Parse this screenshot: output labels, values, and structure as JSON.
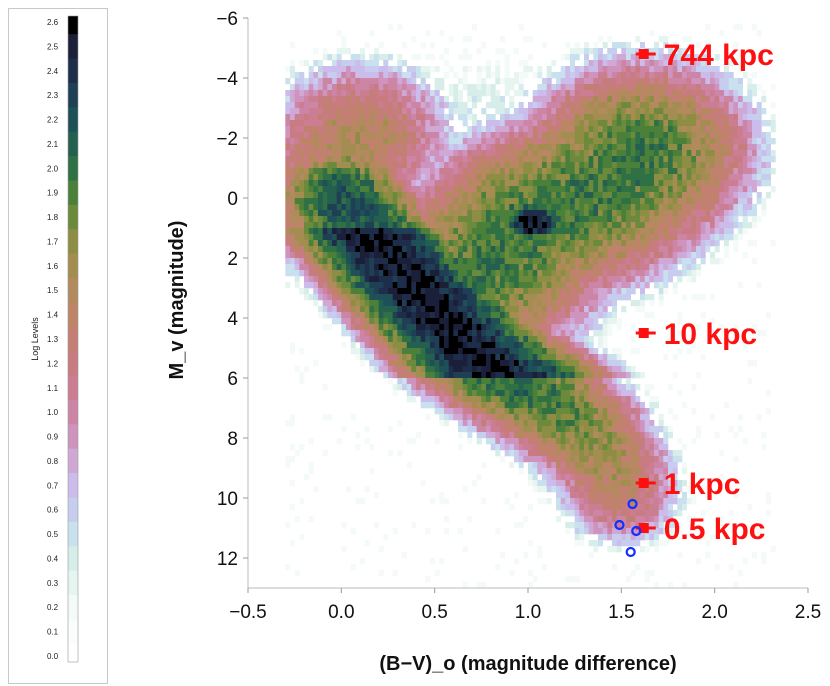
{
  "colorbar": {
    "title": "Log Levels",
    "levels": [
      "2.6",
      "2.5",
      "2.4",
      "2.3",
      "2.2",
      "2.1",
      "2.0",
      "1.9",
      "1.8",
      "1.7",
      "1.6",
      "1.5",
      "1.4",
      "1.3",
      "1.2",
      "1.1",
      "1.0",
      "0.9",
      "0.8",
      "0.7",
      "0.6",
      "0.5",
      "0.4",
      "0.3",
      "0.2",
      "0.1",
      "0.0"
    ],
    "colors": [
      "#000000",
      "#1b1f3a",
      "#1d2d4a",
      "#1f3f55",
      "#1e5157",
      "#255f50",
      "#2f7044",
      "#4a8039",
      "#6c8a3b",
      "#8d8e44",
      "#a38d50",
      "#b28a5d",
      "#bd8468",
      "#c47f74",
      "#c87c82",
      "#cb7d92",
      "#cd85a6",
      "#cf94bd",
      "#cfa8d6",
      "#cbbceb",
      "#c6cdee",
      "#c9e0ee",
      "#d6ede9",
      "#e6f5f0",
      "#f3faf8",
      "#fafdfc",
      "#ffffff"
    ]
  },
  "chart_data": {
    "type": "heatmap",
    "title": "",
    "xlabel": "(B−V)_o (magnitude difference)",
    "ylabel": "M_v (magnitude)",
    "xlim": [
      -0.5,
      2.5
    ],
    "ylim": [
      -6,
      13
    ],
    "y_inverted": true,
    "x_ticks": [
      "−0.5",
      "0.0",
      "0.5",
      "1.0",
      "1.5",
      "2.0",
      "2.5"
    ],
    "y_ticks": [
      "−6",
      "−4",
      "−2",
      "0",
      "2",
      "4",
      "6",
      "8",
      "10",
      "12"
    ],
    "grid": false,
    "distance_markers": [
      {
        "label": "744 kpc",
        "x": 1.62,
        "y": -4.8
      },
      {
        "label": "10 kpc",
        "x": 1.62,
        "y": 4.5
      },
      {
        "label": "1 kpc",
        "x": 1.62,
        "y": 9.5
      },
      {
        "label": "0.5 kpc",
        "x": 1.62,
        "y": 11.0
      }
    ],
    "open_circles": [
      {
        "x": 1.56,
        "y": 10.2
      },
      {
        "x": 1.49,
        "y": 10.9
      },
      {
        "x": 1.58,
        "y": 11.1
      },
      {
        "x": 1.55,
        "y": 11.8
      }
    ],
    "density_features": [
      {
        "name": "main sequence upper",
        "path": [
          [
            0.0,
            0.0
          ],
          [
            0.2,
            1.5
          ],
          [
            0.4,
            3.0
          ],
          [
            0.55,
            4.0
          ],
          [
            0.7,
            5.2
          ],
          [
            0.9,
            6.2
          ],
          [
            1.1,
            7.0
          ],
          [
            1.3,
            8.0
          ],
          [
            1.45,
            9.3
          ],
          [
            1.5,
            10.2
          ]
        ],
        "peak_level": 2.6
      },
      {
        "name": "red clump",
        "x": 1.02,
        "y": 0.8,
        "peak_level": 2.6
      },
      {
        "name": "red giant branch",
        "path": [
          [
            0.8,
            2.2
          ],
          [
            1.0,
            0.8
          ],
          [
            1.3,
            0.0
          ],
          [
            1.5,
            -0.8
          ],
          [
            1.6,
            -1.5
          ]
        ],
        "peak_level": 1.9
      },
      {
        "name": "blue edge / turnoff",
        "path": [
          [
            -0.1,
            0.0
          ],
          [
            0.0,
            -1.0
          ],
          [
            0.1,
            -2.0
          ]
        ],
        "peak_level": 1.5
      }
    ]
  }
}
